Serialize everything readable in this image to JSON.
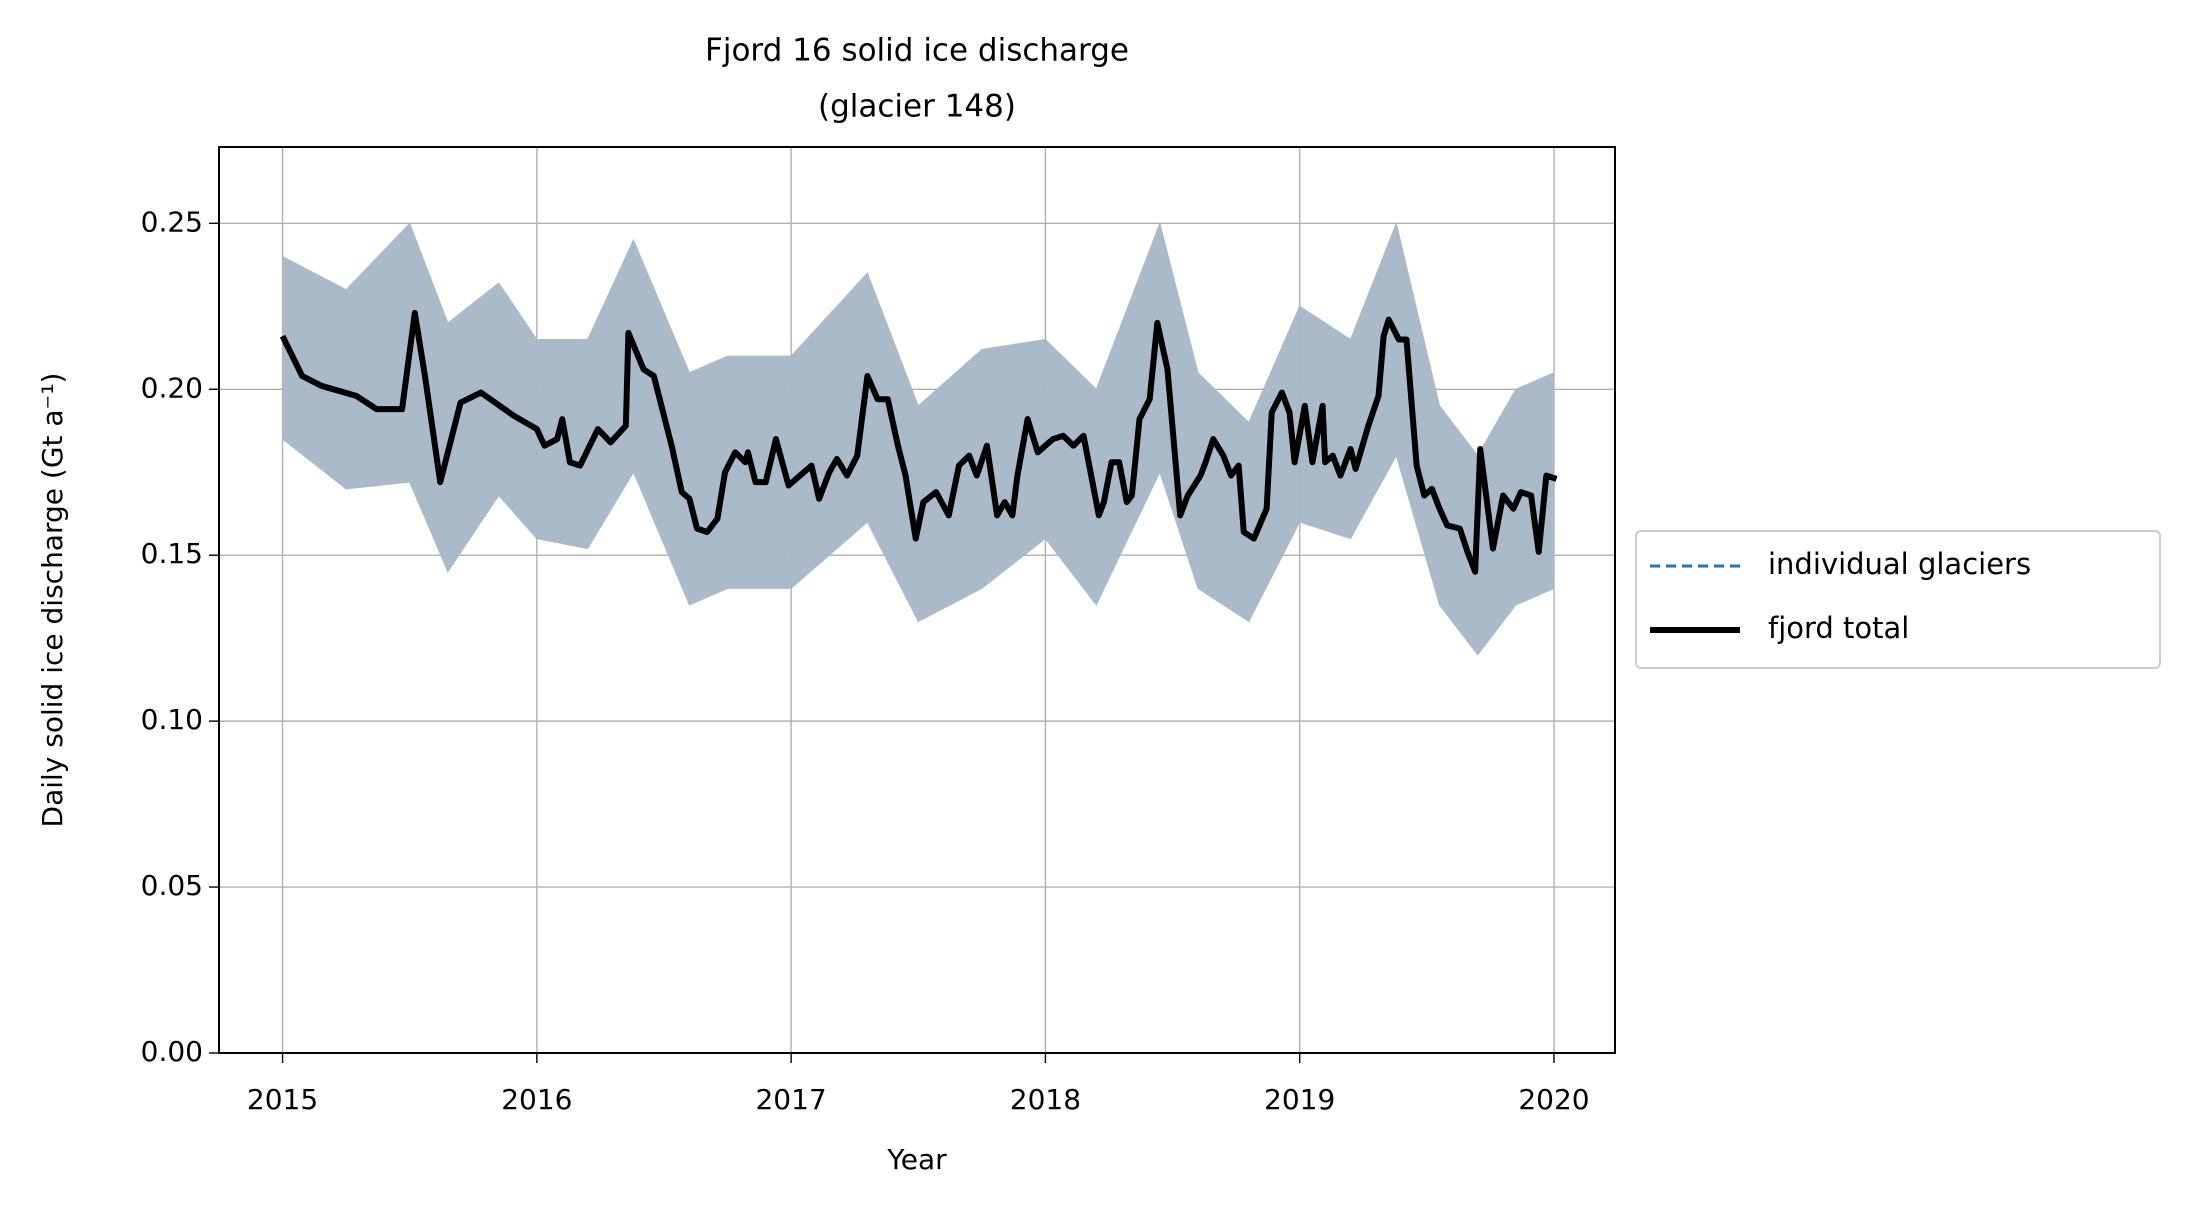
{
  "chart_data": {
    "type": "line",
    "title": "Fjord 16 solid ice discharge",
    "subtitle": "(glacier 148)",
    "x_label": "Year",
    "y_label": "Daily solid ice discharge (Gt a⁻¹)",
    "xlim": [
      2014.75,
      2020.24
    ],
    "ylim": [
      0,
      0.273
    ],
    "xticks": [
      2015,
      2016,
      2017,
      2018,
      2019,
      2020
    ],
    "yticks": [
      {
        "value": 0,
        "label": "0.00"
      },
      0.05,
      {
        "value": 0.1,
        "label": "0.10"
      },
      0.15,
      {
        "value": 0.2,
        "label": "0.20"
      },
      0.25
    ],
    "grid": true,
    "legend": "right",
    "x": [
      2015.0,
      2015.077,
      2015.154,
      2015.29,
      2015.37,
      2015.47,
      2015.52,
      2015.56,
      2015.62,
      2015.7,
      2015.78,
      2015.91,
      2016.0,
      2016.03,
      2016.08,
      2016.1,
      2016.13,
      2016.17,
      2016.24,
      2016.29,
      2016.35,
      2016.36,
      2016.42,
      2016.46,
      2016.53,
      2016.57,
      2016.6,
      2016.63,
      2016.67,
      2016.71,
      2016.74,
      2016.78,
      2016.82,
      2016.83,
      2016.86,
      2016.9,
      2016.94,
      2016.99,
      2017.05,
      2017.08,
      2017.11,
      2017.15,
      2017.18,
      2017.22,
      2017.26,
      2017.3,
      2017.34,
      2017.38,
      2017.42,
      2017.45,
      2017.49,
      2017.52,
      2017.57,
      2017.62,
      2017.66,
      2017.7,
      2017.73,
      2017.77,
      2017.81,
      2017.84,
      2017.87,
      2017.89,
      2017.93,
      2017.97,
      2018.03,
      2018.07,
      2018.11,
      2018.15,
      2018.21,
      2018.23,
      2018.26,
      2018.29,
      2018.32,
      2018.34,
      2018.37,
      2018.41,
      2018.44,
      2018.48,
      2018.53,
      2018.56,
      2018.61,
      2018.63,
      2018.66,
      2018.7,
      2018.73,
      2018.76,
      2018.78,
      2018.82,
      2018.87,
      2018.89,
      2018.93,
      2018.96,
      2018.98,
      2019.02,
      2019.05,
      2019.09,
      2019.1,
      2019.13,
      2019.16,
      2019.2,
      2019.22,
      2019.27,
      2019.31,
      2019.33,
      2019.35,
      2019.39,
      2019.42,
      2019.46,
      2019.49,
      2019.52,
      2019.55,
      2019.58,
      2019.63,
      2019.66,
      2019.69,
      2019.71,
      2019.76,
      2019.8,
      2019.84,
      2019.87,
      2019.91,
      2019.94,
      2019.97,
      2020.01
    ],
    "band": {
      "color": "#a7b7c8",
      "x": [
        2015.0,
        2015.25,
        2015.5,
        2015.65,
        2015.85,
        2016.0,
        2016.2,
        2016.38,
        2016.6,
        2016.75,
        2017.0,
        2017.3,
        2017.5,
        2017.75,
        2018.0,
        2018.2,
        2018.45,
        2018.6,
        2018.8,
        2019.0,
        2019.2,
        2019.38,
        2019.55,
        2019.7,
        2019.85,
        2020.0
      ],
      "upper": [
        0.24,
        0.23,
        0.25,
        0.22,
        0.232,
        0.215,
        0.215,
        0.245,
        0.205,
        0.21,
        0.21,
        0.235,
        0.195,
        0.212,
        0.215,
        0.2,
        0.25,
        0.205,
        0.19,
        0.225,
        0.215,
        0.25,
        0.195,
        0.18,
        0.2,
        0.205
      ],
      "lower": [
        0.185,
        0.17,
        0.172,
        0.145,
        0.168,
        0.155,
        0.152,
        0.175,
        0.135,
        0.14,
        0.14,
        0.16,
        0.13,
        0.14,
        0.155,
        0.135,
        0.175,
        0.14,
        0.13,
        0.16,
        0.155,
        0.18,
        0.135,
        0.12,
        0.135,
        0.14
      ]
    },
    "series": [
      {
        "name": "individual glaciers",
        "color": "#1f77b4",
        "dashed": true,
        "values": [
          0.216,
          0.204,
          0.201,
          0.198,
          0.194,
          0.194,
          0.223,
          0.204,
          0.172,
          0.196,
          0.199,
          0.192,
          0.188,
          0.183,
          0.185,
          0.191,
          0.178,
          0.177,
          0.188,
          0.184,
          0.189,
          0.217,
          0.206,
          0.204,
          0.183,
          0.169,
          0.167,
          0.158,
          0.157,
          0.161,
          0.175,
          0.181,
          0.178,
          0.181,
          0.172,
          0.172,
          0.185,
          0.171,
          0.175,
          0.177,
          0.167,
          0.175,
          0.179,
          0.174,
          0.18,
          0.204,
          0.197,
          0.197,
          0.183,
          0.174,
          0.155,
          0.166,
          0.169,
          0.162,
          0.177,
          0.18,
          0.174,
          0.183,
          0.162,
          0.166,
          0.162,
          0.174,
          0.191,
          0.181,
          0.185,
          0.186,
          0.183,
          0.186,
          0.162,
          0.166,
          0.178,
          0.178,
          0.166,
          0.168,
          0.191,
          0.197,
          0.22,
          0.206,
          0.162,
          0.168,
          0.174,
          0.178,
          0.185,
          0.18,
          0.174,
          0.177,
          0.157,
          0.155,
          0.164,
          0.193,
          0.199,
          0.193,
          0.178,
          0.195,
          0.178,
          0.195,
          0.178,
          0.18,
          0.174,
          0.182,
          0.176,
          0.189,
          0.198,
          0.216,
          0.221,
          0.215,
          0.215,
          0.177,
          0.168,
          0.17,
          0.164,
          0.159,
          0.158,
          0.151,
          0.145,
          0.182,
          0.152,
          0.168,
          0.164,
          0.169,
          0.168,
          0.151,
          0.174,
          0.173
        ]
      },
      {
        "name": "fjord total",
        "color": "#000000",
        "dashed": false,
        "values": [
          0.216,
          0.204,
          0.201,
          0.198,
          0.194,
          0.194,
          0.223,
          0.204,
          0.172,
          0.196,
          0.199,
          0.192,
          0.188,
          0.183,
          0.185,
          0.191,
          0.178,
          0.177,
          0.188,
          0.184,
          0.189,
          0.217,
          0.206,
          0.204,
          0.183,
          0.169,
          0.167,
          0.158,
          0.157,
          0.161,
          0.175,
          0.181,
          0.178,
          0.181,
          0.172,
          0.172,
          0.185,
          0.171,
          0.175,
          0.177,
          0.167,
          0.175,
          0.179,
          0.174,
          0.18,
          0.204,
          0.197,
          0.197,
          0.183,
          0.174,
          0.155,
          0.166,
          0.169,
          0.162,
          0.177,
          0.18,
          0.174,
          0.183,
          0.162,
          0.166,
          0.162,
          0.174,
          0.191,
          0.181,
          0.185,
          0.186,
          0.183,
          0.186,
          0.162,
          0.166,
          0.178,
          0.178,
          0.166,
          0.168,
          0.191,
          0.197,
          0.22,
          0.206,
          0.162,
          0.168,
          0.174,
          0.178,
          0.185,
          0.18,
          0.174,
          0.177,
          0.157,
          0.155,
          0.164,
          0.193,
          0.199,
          0.193,
          0.178,
          0.195,
          0.178,
          0.195,
          0.178,
          0.18,
          0.174,
          0.182,
          0.176,
          0.189,
          0.198,
          0.216,
          0.221,
          0.215,
          0.215,
          0.177,
          0.168,
          0.17,
          0.164,
          0.159,
          0.158,
          0.151,
          0.145,
          0.182,
          0.152,
          0.168,
          0.164,
          0.169,
          0.168,
          0.151,
          0.174,
          0.173
        ]
      }
    ]
  }
}
